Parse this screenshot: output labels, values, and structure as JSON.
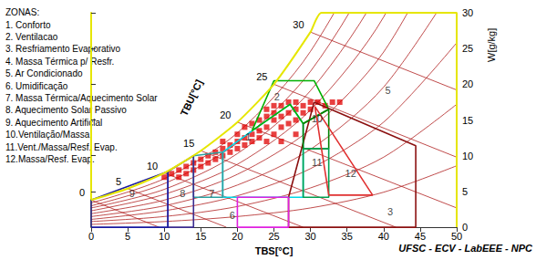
{
  "chart_data": {
    "type": "psychrometric",
    "legend_title": "ZONAS:",
    "legend_items": [
      "1. Conforto",
      "2. Ventilacao",
      "3. Resfriamento Evaporativo",
      "4. Massa Térmica p/ Resfr.",
      "5. Ar Condicionado",
      "6. Umidificação",
      "7. Massa Térmica/Aquecimento Solar",
      "8. Aquecimento Solar Passivo",
      "9. Aquecimento Artificial",
      "10.Ventilação/Massa",
      "11.Vent./Massa/Resf. Evap.",
      "12.Massa/Resf. Evap."
    ],
    "x_label": "TBS[°C]",
    "y_label": "W[g/kg]",
    "wet_bulb_label": "TBU[°C]",
    "credit": "UFSC - ECV - LabEEE - NPC",
    "xlim": [
      0,
      50
    ],
    "xticks": [
      0,
      5,
      10,
      15,
      20,
      25,
      30,
      35,
      40,
      45,
      50
    ],
    "ylim": [
      0,
      30
    ],
    "yticks": [
      0,
      5,
      10,
      15,
      20,
      25,
      30
    ],
    "grid": false,
    "saturation": {
      "color": "#e6e600",
      "x": [
        0,
        5,
        10,
        15,
        20,
        25,
        30,
        31.5,
        50,
        50
      ],
      "y": [
        3.8,
        5.4,
        7.6,
        10.7,
        14.7,
        20,
        27.3,
        30,
        30,
        0
      ]
    },
    "rh_curves": {
      "color": "#b02020",
      "x": [
        0,
        10,
        20,
        30,
        40,
        50
      ],
      "series": [
        {
          "values": [
            0.4,
            0.8,
            1.5,
            2.7,
            4.9,
            8.6
          ]
        },
        {
          "values": [
            0.8,
            1.5,
            2.9,
            5.5,
            9.8,
            17.2
          ]
        },
        {
          "values": [
            1.1,
            2.3,
            4.4,
            8.2,
            14.7,
            25.8
          ]
        },
        {
          "values": [
            1.5,
            3.0,
            5.9,
            10.9,
            19.6,
            34.4
          ]
        },
        {
          "values": [
            1.9,
            3.8,
            7.4,
            13.7,
            24.5,
            43
          ]
        },
        {
          "values": [
            2.3,
            4.6,
            8.8,
            16.4,
            29.4,
            51.6
          ]
        },
        {
          "values": [
            2.7,
            5.3,
            10.3,
            19.1,
            34.3,
            60.2
          ]
        },
        {
          "values": [
            3.0,
            6.1,
            11.8,
            21.8,
            39.2,
            68.8
          ]
        },
        {
          "values": [
            3.4,
            6.8,
            13.2,
            24.6,
            44.1,
            77.4
          ]
        }
      ]
    },
    "wet_bulb_lines": {
      "color": "#b02020",
      "lines": [
        {
          "tbu": 0,
          "x": [
            0,
            9.3
          ],
          "y": [
            3.8,
            0
          ]
        },
        {
          "tbu": 5,
          "x": [
            5,
            18.5
          ],
          "y": [
            5.4,
            0
          ]
        },
        {
          "tbu": 10,
          "x": [
            10,
            29
          ],
          "y": [
            7.6,
            0
          ]
        },
        {
          "tbu": 15,
          "x": [
            15,
            41.7
          ],
          "y": [
            10.7,
            0
          ]
        },
        {
          "tbu": 20,
          "x": [
            20,
            50
          ],
          "y": [
            14.7,
            2.7
          ]
        },
        {
          "tbu": 25,
          "x": [
            25,
            50
          ],
          "y": [
            20,
            9.8
          ]
        },
        {
          "tbu": 30,
          "x": [
            30,
            50
          ],
          "y": [
            27.3,
            19.2
          ]
        }
      ]
    },
    "climate_data": {
      "color": "#e00000",
      "marker": "square",
      "x": [
        10,
        11,
        12,
        12,
        13,
        13,
        14,
        14,
        15,
        15,
        16,
        16,
        17,
        17,
        18,
        18,
        18,
        19,
        19,
        20,
        20,
        20,
        21,
        21,
        21,
        22,
        22,
        22,
        23,
        23,
        23,
        24,
        24,
        24,
        25,
        25,
        25,
        25,
        26,
        26,
        26,
        27,
        27,
        27,
        28,
        28,
        28,
        29,
        29,
        30,
        30,
        31,
        32,
        33,
        34,
        26,
        24,
        28
      ],
      "y": [
        7,
        7.5,
        8,
        7,
        8.5,
        7.5,
        9,
        8,
        9.5,
        8.5,
        10,
        9,
        10.5,
        9.5,
        11,
        10,
        12,
        11.5,
        10.5,
        12,
        11,
        13,
        12.5,
        11.5,
        14,
        13,
        12,
        14.5,
        13.5,
        15,
        12.5,
        14,
        15.5,
        16.5,
        15,
        16,
        17,
        13,
        15.5,
        17,
        14,
        16,
        17.5,
        14.5,
        16.5,
        17.5,
        15,
        17,
        16,
        17.5,
        16.5,
        17.5,
        17,
        17.5,
        17.5,
        12,
        12,
        13
      ]
    },
    "zones": [
      {
        "label": "1",
        "color": "#00d8e8",
        "polygon_x": [
          18,
          18,
          22,
          27.2,
          29,
          29
        ],
        "polygon_y": [
          4.2,
          10.5,
          13.5,
          17.2,
          14.5,
          4.2
        ],
        "label_x": 21.5,
        "label_y": 12.7
      },
      {
        "label": "2",
        "color": "#00b000",
        "polygon_x": [
          22,
          25,
          30.5,
          32.5,
          29,
          27.2
        ],
        "polygon_y": [
          13.5,
          20.5,
          20.5,
          16.5,
          14.5,
          17.2
        ],
        "label_x": 25.4,
        "label_y": 18.2
      },
      {
        "label": "3",
        "color": "#8b1010",
        "polygon_x": [
          30.5,
          44.4,
          44.4,
          27,
          27
        ],
        "polygon_y": [
          17.5,
          11.4,
          0,
          0,
          4.2
        ],
        "label_x": 40.9,
        "label_y": 2.2
      },
      {
        "label": "5",
        "label_x": 40.6,
        "label_y": 19.1
      },
      {
        "label": "6",
        "color": "#e020e0",
        "polygon_x": [
          20,
          20,
          27,
          27
        ],
        "polygon_y": [
          0,
          4.2,
          4.2,
          0
        ],
        "label_x": 19.3,
        "label_y": 1.7
      },
      {
        "label": "7",
        "color": "#2aa0a0",
        "polygon_x": [
          14,
          14,
          18,
          18
        ],
        "polygon_y": [
          4.2,
          10,
          10.5,
          4.2
        ],
        "label_x": 16.5,
        "label_y": 4.7
      },
      {
        "label": "8",
        "color": "#3b2b8f",
        "polygon_x": [
          10.5,
          10.5,
          14,
          14
        ],
        "polygon_y": [
          0,
          7.8,
          10,
          0
        ],
        "label_x": 12.5,
        "label_y": 4.7
      },
      {
        "label": "9",
        "color": "#1a1aa0",
        "polygon_x": [
          0,
          0,
          10.5,
          10.5
        ],
        "polygon_y": [
          0,
          3.8,
          7.8,
          0
        ],
        "label_x": 5.6,
        "label_y": 4.7
      },
      {
        "label": "10",
        "color": "#008000",
        "polygon_x": [
          29,
          32.5,
          32.5,
          29
        ],
        "polygon_y": [
          14.5,
          16.5,
          11,
          11
        ],
        "label_x": 30.9,
        "label_y": 15.2
      },
      {
        "label": "11",
        "color": "#00a050",
        "polygon_x": [
          29,
          32.5,
          32.5,
          29
        ],
        "polygon_y": [
          11,
          11,
          4.2,
          4.2
        ],
        "label_x": 30.9,
        "label_y": 9.1
      },
      {
        "label": "12",
        "color": "#e03030",
        "polygon_x": [
          30.6,
          38.5,
          32.5
        ],
        "polygon_y": [
          16.9,
          4.5,
          4.5
        ],
        "label_x": 35.5,
        "label_y": 7.6
      }
    ]
  }
}
